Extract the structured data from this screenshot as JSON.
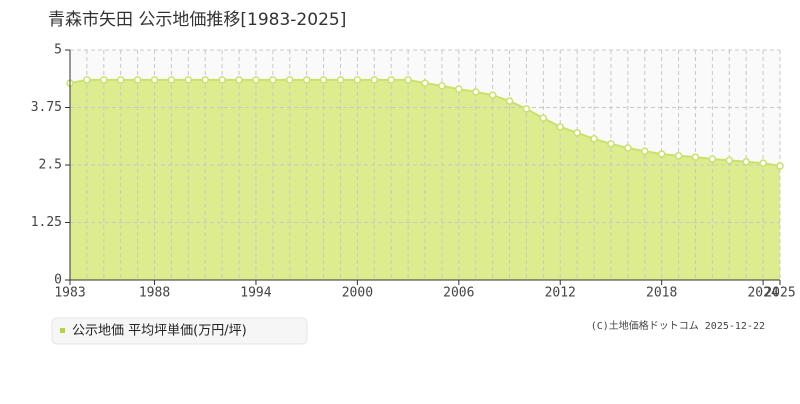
{
  "chart_data": {
    "type": "area",
    "title": "青森市矢田 公示地価推移[1983-2025]",
    "series": [
      {
        "name": "公示地価 平均坪単価(万円/坪)",
        "color": "#c9e26b",
        "values": [
          4.28,
          4.35,
          4.35,
          4.35,
          4.35,
          4.35,
          4.35,
          4.35,
          4.35,
          4.35,
          4.35,
          4.35,
          4.35,
          4.35,
          4.35,
          4.35,
          4.35,
          4.35,
          4.35,
          4.35,
          4.35,
          4.28,
          4.22,
          4.15,
          4.09,
          4.02,
          3.89,
          3.72,
          3.52,
          3.33,
          3.2,
          3.07,
          2.96,
          2.87,
          2.8,
          2.74,
          2.7,
          2.67,
          2.63,
          2.6,
          2.57,
          2.54,
          2.48
        ]
      }
    ],
    "x": [
      1983,
      1984,
      1985,
      1986,
      1987,
      1988,
      1989,
      1990,
      1991,
      1992,
      1993,
      1994,
      1995,
      1996,
      1997,
      1998,
      1999,
      2000,
      2001,
      2002,
      2003,
      2004,
      2005,
      2006,
      2007,
      2008,
      2009,
      2010,
      2011,
      2012,
      2013,
      2014,
      2015,
      2016,
      2017,
      2018,
      2019,
      2020,
      2021,
      2022,
      2023,
      2024,
      2025
    ],
    "xlim": [
      1983,
      2025
    ],
    "xticks": [
      1983,
      1988,
      1994,
      2000,
      2006,
      2012,
      2018,
      2024,
      2025
    ],
    "ylim": [
      0,
      5
    ],
    "yticks": [
      0,
      1.25,
      2.5,
      3.75,
      5
    ],
    "grid": true,
    "source": "(C)土地価格ドットコム 2025-12-22"
  }
}
